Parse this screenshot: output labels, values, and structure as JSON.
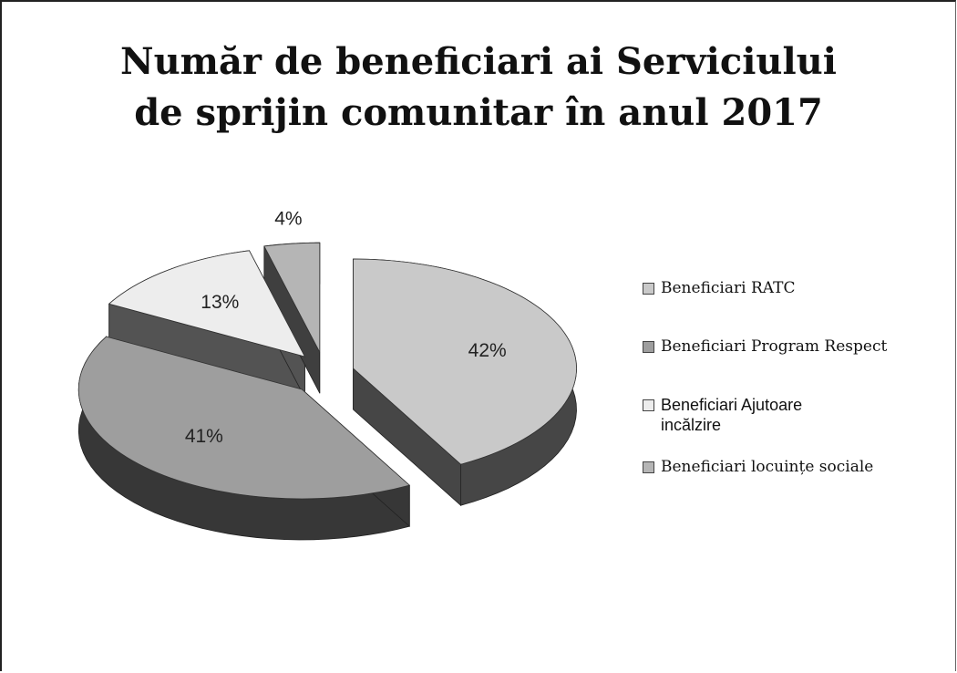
{
  "chart_data": {
    "type": "pie",
    "title": "Număr de beneficiari ai Serviciului de sprijin comunitar în anul 2017",
    "categories": [
      "Beneficiari RATC",
      "Beneficiari Program Respect",
      "Beneficiari Ajutoare incălzire",
      "Beneficiari locuințe sociale"
    ],
    "values": [
      42,
      41,
      13,
      4
    ],
    "value_labels": [
      "42%",
      "41%",
      "13%",
      "4%"
    ],
    "colors": [
      "#c9c9c9",
      "#9e9e9e",
      "#ededed",
      "#b5b5b5"
    ],
    "legend": "right"
  }
}
